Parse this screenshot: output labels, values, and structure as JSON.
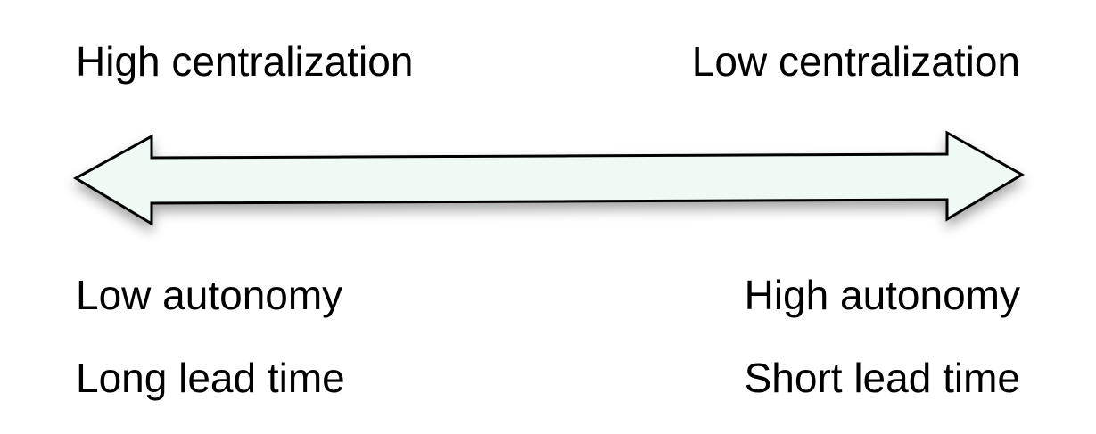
{
  "top": {
    "left_label": "High centralization",
    "right_label": "Low centralization"
  },
  "bottom": {
    "left_lines": [
      "Low autonomy",
      "Long lead time"
    ],
    "right_lines": [
      "High autonomy",
      "Short lead time"
    ]
  },
  "colors": {
    "arrow_fill": "#eefaf3",
    "arrow_stroke": "#000000",
    "text": "#000000"
  }
}
